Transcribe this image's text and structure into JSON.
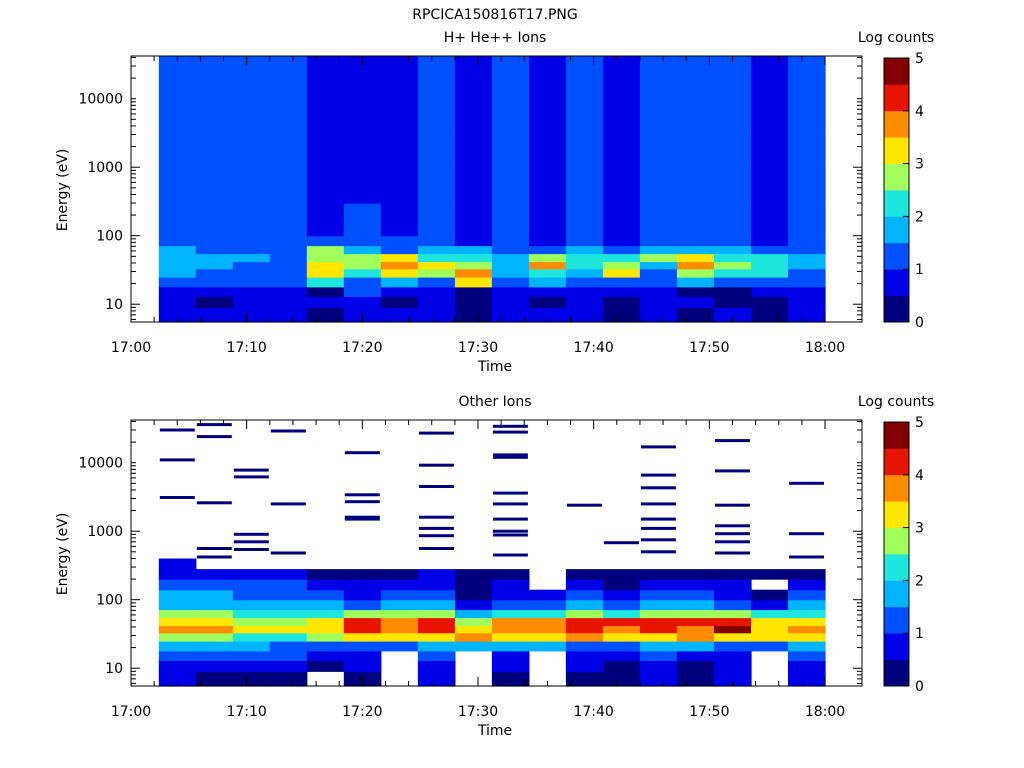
{
  "figure_title": "RPCICA150816T17.PNG",
  "palette": [
    "#00007f",
    "#0000e6",
    "#0050ff",
    "#00b4ff",
    "#1ee6dc",
    "#a0ff5a",
    "#ffe600",
    "#ff8c00",
    "#e61400",
    "#800000"
  ],
  "chart_data": [
    {
      "type": "heatmap",
      "title": "H+ He++ Ions",
      "xlabel": "Time",
      "ylabel": "Energy (eV)",
      "x_ticks": [
        "17:00",
        "17:10",
        "17:20",
        "17:30",
        "17:40",
        "17:50",
        "18:00"
      ],
      "xlim_minutes": [
        0,
        60
      ],
      "y_scale": "log",
      "ylim": [
        5.5,
        42000
      ],
      "y_ticks": [
        10,
        100,
        1000,
        10000
      ],
      "y_tick_labels": [
        "10",
        "100",
        "1000",
        "10000"
      ],
      "colorbar_label": "Log counts",
      "colorbar_ticks": [
        0,
        1,
        2,
        3,
        4,
        5
      ],
      "colorbar_range": [
        0,
        5
      ],
      "time_bins_minutes": [
        2.4,
        5.6,
        8.8,
        12.0,
        15.2,
        18.4,
        21.6,
        24.8,
        28.0,
        31.2,
        34.4,
        37.6,
        40.8,
        44.0,
        47.2,
        50.4,
        53.6,
        56.8,
        60.0
      ],
      "energy_bands_eV": [
        [
          5.5,
          9
        ],
        [
          9,
          13
        ],
        [
          13,
          18
        ],
        [
          18,
          25
        ],
        [
          25,
          33
        ],
        [
          33,
          42
        ],
        [
          42,
          55
        ],
        [
          55,
          72
        ],
        [
          72,
          100
        ],
        [
          100,
          300
        ],
        [
          300,
          1000
        ],
        [
          1000,
          3000
        ],
        [
          3000,
          42000
        ]
      ],
      "values": [
        [
          0.6,
          0.6,
          0.7,
          0.7,
          0.4,
          0.8,
          0.5,
          0.5,
          0.4,
          0.6,
          0.6,
          0.7,
          0.0,
          0.7,
          0.4,
          0.6,
          0.4,
          0.5
        ],
        [
          0.7,
          0.4,
          0.8,
          0.7,
          0.5,
          0.8,
          0.4,
          0.6,
          0.3,
          0.5,
          0.0,
          0.7,
          0.4,
          0.6,
          0.5,
          0.4,
          0.3,
          0.6
        ],
        [
          0.9,
          0.7,
          0.8,
          0.8,
          0.0,
          1.0,
          0.7,
          0.8,
          0.4,
          0.8,
          0.6,
          0.9,
          0.6,
          0.7,
          0.0,
          0.0,
          0.5,
          0.8
        ],
        [
          1.2,
          1.2,
          1.0,
          1.0,
          2.2,
          1.1,
          1.5,
          1.2,
          3.0,
          1.3,
          1.6,
          1.4,
          1.1,
          1.0,
          1.5,
          1.3,
          1.3,
          1.1
        ],
        [
          1.5,
          1.4,
          1.2,
          1.1,
          3.4,
          2.1,
          3.0,
          2.5,
          3.5,
          1.6,
          2.1,
          1.8,
          3.2,
          1.4,
          2.8,
          2.0,
          2.2,
          1.4
        ],
        [
          1.8,
          1.7,
          1.4,
          1.3,
          3.2,
          2.6,
          3.9,
          3.0,
          2.8,
          1.8,
          3.9,
          2.4,
          2.9,
          1.8,
          3.9,
          2.6,
          2.2,
          1.6
        ],
        [
          1.9,
          1.7,
          1.5,
          1.4,
          2.9,
          2.7,
          3.0,
          2.4,
          2.4,
          1.8,
          2.6,
          2.2,
          2.4,
          2.5,
          3.0,
          2.4,
          2.1,
          1.6
        ],
        [
          1.6,
          1.4,
          1.3,
          1.2,
          2.5,
          1.9,
          1.4,
          1.7,
          1.5,
          1.3,
          1.4,
          1.6,
          1.3,
          1.6,
          1.6,
          1.7,
          1.3,
          1.3
        ],
        [
          1.4,
          1.3,
          1.1,
          1.1,
          1.0,
          1.2,
          1.0,
          1.2,
          0.6,
          1.0,
          0.8,
          1.2,
          0.8,
          1.1,
          1.2,
          1.2,
          0.9,
          1.0
        ],
        [
          1.3,
          1.3,
          1.1,
          1.2,
          0.9,
          1.0,
          0.8,
          1.2,
          0.7,
          1.1,
          0.8,
          1.2,
          0.8,
          1.1,
          1.2,
          1.2,
          0.8,
          1.1
        ],
        [
          1.2,
          1.2,
          1.0,
          1.1,
          0.8,
          0.9,
          0.8,
          1.1,
          0.6,
          1.0,
          0.7,
          1.1,
          0.7,
          1.0,
          1.1,
          1.1,
          0.7,
          1.0
        ],
        [
          1.1,
          1.1,
          1.0,
          1.1,
          0.7,
          0.9,
          0.7,
          1.0,
          0.6,
          1.0,
          0.7,
          1.1,
          0.7,
          1.0,
          1.1,
          1.1,
          0.6,
          1.0
        ],
        [
          1.1,
          1.1,
          1.0,
          1.1,
          0.7,
          0.8,
          0.7,
          1.0,
          0.7,
          1.0,
          0.8,
          1.1,
          0.8,
          1.0,
          1.1,
          1.1,
          0.6,
          1.0
        ]
      ]
    },
    {
      "type": "heatmap",
      "title": "Other Ions",
      "xlabel": "Time",
      "ylabel": "Energy (eV)",
      "x_ticks": [
        "17:00",
        "17:10",
        "17:20",
        "17:30",
        "17:40",
        "17:50",
        "18:00"
      ],
      "xlim_minutes": [
        0,
        60
      ],
      "y_scale": "log",
      "ylim": [
        5.5,
        42000
      ],
      "y_ticks": [
        10,
        100,
        1000,
        10000
      ],
      "y_tick_labels": [
        "10",
        "100",
        "1000",
        "10000"
      ],
      "colorbar_label": "Log counts",
      "colorbar_ticks": [
        0,
        1,
        2,
        3,
        4,
        5
      ],
      "colorbar_range": [
        0,
        5
      ],
      "time_bins_minutes": [
        2.4,
        5.6,
        8.8,
        12.0,
        15.2,
        18.4,
        21.6,
        24.8,
        28.0,
        31.2,
        34.4,
        37.6,
        40.8,
        44.0,
        47.2,
        50.4,
        53.6,
        56.8,
        60.0
      ],
      "energy_bands_eV": [
        [
          5.5,
          9
        ],
        [
          9,
          13
        ],
        [
          13,
          18
        ],
        [
          18,
          25
        ],
        [
          25,
          33
        ],
        [
          33,
          42
        ],
        [
          42,
          55
        ],
        [
          55,
          72
        ],
        [
          72,
          100
        ],
        [
          100,
          140
        ],
        [
          140,
          200
        ],
        [
          200,
          280
        ],
        [
          280,
          400
        ]
      ],
      "values": [
        [
          0.6,
          0.4,
          0.4,
          0.4,
          null,
          0.2,
          null,
          0.5,
          null,
          0.4,
          null,
          0.3,
          0.2,
          0.6,
          0.3,
          0.5,
          null,
          0.6
        ],
        [
          0.9,
          0.8,
          0.7,
          0.8,
          0.3,
          0.6,
          null,
          0.9,
          null,
          0.7,
          null,
          0.6,
          0.4,
          0.8,
          0.2,
          0.8,
          null,
          0.8
        ],
        [
          1.4,
          1.3,
          1.1,
          1.1,
          0.9,
          0.5,
          null,
          1.2,
          null,
          0.8,
          null,
          0.9,
          0.7,
          1.0,
          0.9,
          0.9,
          null,
          1.0
        ],
        [
          1.9,
          1.7,
          1.5,
          1.4,
          1.2,
          1.4,
          1.4,
          1.6,
          1.5,
          1.5,
          1.6,
          1.4,
          1.3,
          1.5,
          1.5,
          1.4,
          1.4,
          1.6
        ],
        [
          2.9,
          2.7,
          2.3,
          2.2,
          2.6,
          3.4,
          3.2,
          3.1,
          3.6,
          3.2,
          3.2,
          3.5,
          3.3,
          3.4,
          3.5,
          3.3,
          3.1,
          3.2
        ],
        [
          3.6,
          3.5,
          3.0,
          3.0,
          3.4,
          4.0,
          3.7,
          4.2,
          3.2,
          3.7,
          3.9,
          4.2,
          3.9,
          4.3,
          3.9,
          4.5,
          3.3,
          3.6
        ],
        [
          3.3,
          3.2,
          2.8,
          2.7,
          3.0,
          4.4,
          3.8,
          4.0,
          2.7,
          3.5,
          3.7,
          4.4,
          4.0,
          4.0,
          4.1,
          4.0,
          3.0,
          3.3
        ],
        [
          2.6,
          2.6,
          2.3,
          2.3,
          2.4,
          2.7,
          2.7,
          2.8,
          1.6,
          2.2,
          2.3,
          2.6,
          2.4,
          2.6,
          2.5,
          2.5,
          2.1,
          2.4
        ],
        [
          1.9,
          1.9,
          1.7,
          1.7,
          1.6,
          1.4,
          1.6,
          1.9,
          0.5,
          1.3,
          1.3,
          1.5,
          1.4,
          1.6,
          1.5,
          1.4,
          0.8,
          1.5
        ],
        [
          1.5,
          1.5,
          1.3,
          1.3,
          1.0,
          0.9,
          1.1,
          1.2,
          0.3,
          0.9,
          0.6,
          1.0,
          0.8,
          1.0,
          1.0,
          0.9,
          0.3,
          1.1
        ],
        [
          1.2,
          1.2,
          1.0,
          1.0,
          0.7,
          0.5,
          0.7,
          0.8,
          0.2,
          0.6,
          null,
          0.6,
          0.4,
          0.7,
          0.6,
          0.6,
          null,
          0.7
        ],
        [
          0.9,
          0.9,
          0.7,
          0.7,
          0.4,
          0.4,
          0.4,
          0.5,
          0.3,
          0.3,
          null,
          0.3,
          0.2,
          0.4,
          0.3,
          0.3,
          0.2,
          0.4
        ],
        [
          0.5,
          null,
          null,
          null,
          null,
          null,
          null,
          null,
          null,
          null,
          null,
          null,
          null,
          null,
          null,
          null,
          null,
          null
        ]
      ],
      "sparse_high_energy_hits": [
        [
          {
            "eV": 30000,
            "v": 0.1
          },
          {
            "eV": 11000,
            "v": 0.1
          },
          {
            "eV": 3100,
            "v": 0.1
          }
        ],
        [
          {
            "eV": 36000,
            "v": 0.1
          },
          {
            "eV": 24000,
            "v": 0.2
          },
          {
            "eV": 2600,
            "v": 0.1
          },
          {
            "eV": 560,
            "v": 0.1
          },
          {
            "eV": 420,
            "v": 0.1
          }
        ],
        [
          {
            "eV": 7800,
            "v": 0.2
          },
          {
            "eV": 6200,
            "v": 0.1
          },
          {
            "eV": 900,
            "v": 0.1
          },
          {
            "eV": 700,
            "v": 0.1
          },
          {
            "eV": 540,
            "v": 0.1
          }
        ],
        [
          {
            "eV": 29000,
            "v": 0.1
          },
          {
            "eV": 2500,
            "v": 0.1
          },
          {
            "eV": 480,
            "v": 0.1
          }
        ],
        [],
        [
          {
            "eV": 14000,
            "v": 0.1
          },
          {
            "eV": 3400,
            "v": 0.1
          },
          {
            "eV": 2700,
            "v": 0.1
          },
          {
            "eV": 1600,
            "v": 0.2
          },
          {
            "eV": 1500,
            "v": 0.1
          }
        ],
        [],
        [
          {
            "eV": 27000,
            "v": 0.1
          },
          {
            "eV": 9200,
            "v": 0.1
          },
          {
            "eV": 4500,
            "v": 0.1
          },
          {
            "eV": 1600,
            "v": 0.1
          },
          {
            "eV": 1100,
            "v": 0.1
          },
          {
            "eV": 860,
            "v": 0.1
          },
          {
            "eV": 560,
            "v": 0.1
          }
        ],
        [],
        [
          {
            "eV": 34000,
            "v": 0.1
          },
          {
            "eV": 28000,
            "v": 0.1
          },
          {
            "eV": 13000,
            "v": 0.1
          },
          {
            "eV": 12000,
            "v": 0.1
          },
          {
            "eV": 3600,
            "v": 0.1
          },
          {
            "eV": 2500,
            "v": 0.1
          },
          {
            "eV": 1500,
            "v": 0.1
          },
          {
            "eV": 1000,
            "v": 0.1
          },
          {
            "eV": 880,
            "v": 0.1
          },
          {
            "eV": 450,
            "v": 0.1
          }
        ],
        [],
        [
          {
            "eV": 2400,
            "v": 0.1
          }
        ],
        [
          {
            "eV": 680,
            "v": 0.1
          }
        ],
        [
          {
            "eV": 17000,
            "v": 0.1
          },
          {
            "eV": 6600,
            "v": 0.1
          },
          {
            "eV": 4300,
            "v": 0.1
          },
          {
            "eV": 2500,
            "v": 0.1
          },
          {
            "eV": 1500,
            "v": 0.1
          },
          {
            "eV": 1100,
            "v": 0.1
          },
          {
            "eV": 750,
            "v": 0.1
          },
          {
            "eV": 500,
            "v": 0.1
          }
        ],
        [],
        [
          {
            "eV": 21000,
            "v": 0.1
          },
          {
            "eV": 7600,
            "v": 0.1
          },
          {
            "eV": 2400,
            "v": 0.1
          },
          {
            "eV": 1200,
            "v": 0.1
          },
          {
            "eV": 920,
            "v": 0.1
          },
          {
            "eV": 700,
            "v": 0.1
          },
          {
            "eV": 480,
            "v": 0.1
          }
        ],
        [],
        [
          {
            "eV": 5000,
            "v": 0.1
          },
          {
            "eV": 920,
            "v": 0.1
          },
          {
            "eV": 420,
            "v": 0.1
          }
        ]
      ]
    }
  ]
}
